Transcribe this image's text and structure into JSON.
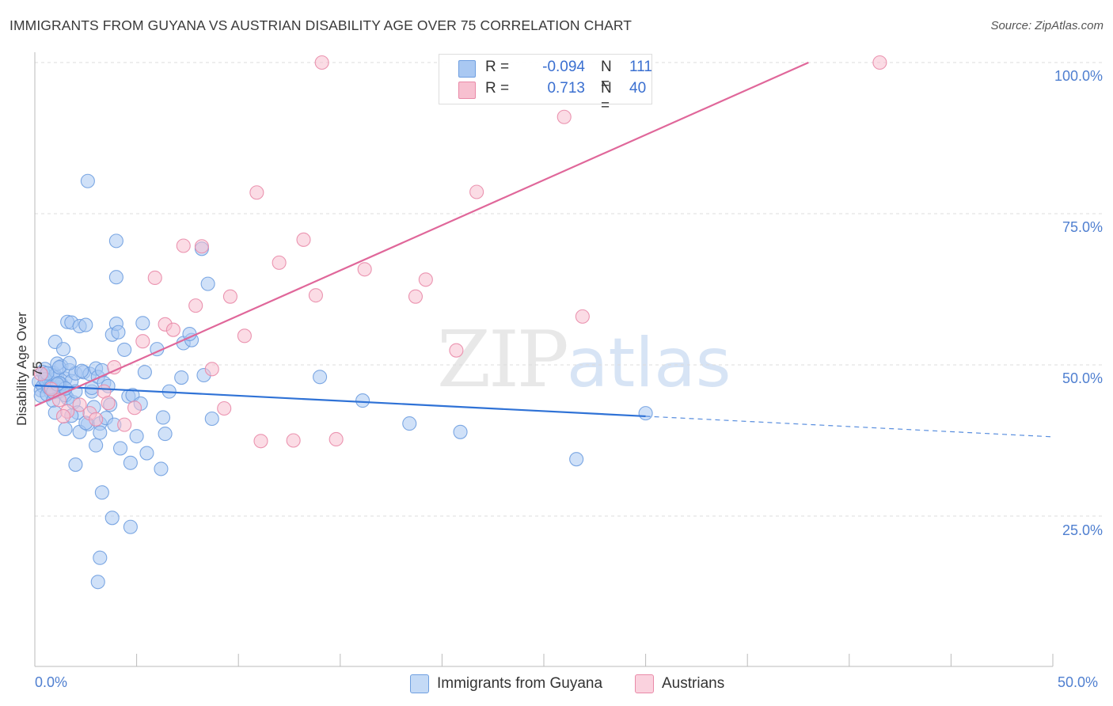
{
  "title": "IMMIGRANTS FROM GUYANA VS AUSTRIAN DISABILITY AGE OVER 75 CORRELATION CHART",
  "source": "Source: ZipAtlas.com",
  "watermark": {
    "part1": "ZIP",
    "part2": "atlas"
  },
  "legend": {
    "rows": [
      {
        "r_label": "R =",
        "r_value": "-0.094",
        "n_label": "N =",
        "n_value": "111",
        "color": "#a9c8f2",
        "stroke": "#6f9fe0"
      },
      {
        "r_label": "R =",
        "r_value": "0.713",
        "n_label": "N =",
        "n_value": "40",
        "color": "#f7c0d0",
        "stroke": "#e98aa8"
      }
    ]
  },
  "bottom_legend": [
    "Immigrants from Guyana",
    "Austrians"
  ],
  "chart_data": {
    "type": "scatter",
    "title": "IMMIGRANTS FROM GUYANA VS AUSTRIAN DISABILITY AGE OVER 75 CORRELATION CHART",
    "xlabel": "",
    "ylabel": "Disability Age Over 75",
    "xlim": [
      0,
      50
    ],
    "ylim": [
      0,
      102
    ],
    "x_tick_labels": [
      "0.0%",
      "50.0%"
    ],
    "y_ticks": [
      25,
      50,
      75,
      100
    ],
    "y_tick_labels": [
      "25.0%",
      "50.0%",
      "75.0%",
      "100.0%"
    ],
    "grid": "horizontal dashed",
    "legend_position": "top-center",
    "series": [
      {
        "name": "Immigrants from Guyana",
        "color": "#6f9fe0",
        "fill": "#a9c8f2",
        "trend": {
          "x0": 0,
          "y0": 46.6,
          "x1": 30,
          "y1": 41.5,
          "dashed_to_x": 50,
          "dashed_to_y": 38.1,
          "color": "#2f72d6"
        },
        "points": [
          [
            0.2,
            47.2
          ],
          [
            0.3,
            45.8
          ],
          [
            0.4,
            46.5
          ],
          [
            0.5,
            48.1
          ],
          [
            0.6,
            46.9
          ],
          [
            0.7,
            47.5
          ],
          [
            0.8,
            45.4
          ],
          [
            0.9,
            48.7
          ],
          [
            1.0,
            46.0
          ],
          [
            1.1,
            47.9
          ],
          [
            0.3,
            44.9
          ],
          [
            0.5,
            49.3
          ],
          [
            0.6,
            45.1
          ],
          [
            0.8,
            47.0
          ],
          [
            1.0,
            48.3
          ],
          [
            1.2,
            45.6
          ],
          [
            1.3,
            49.8
          ],
          [
            1.4,
            46.3
          ],
          [
            1.5,
            47.7
          ],
          [
            1.6,
            44.5
          ],
          [
            0.4,
            48.8
          ],
          [
            0.7,
            46.2
          ],
          [
            0.9,
            44.1
          ],
          [
            1.1,
            50.2
          ],
          [
            1.3,
            46.8
          ],
          [
            1.5,
            45.0
          ],
          [
            1.7,
            49.1
          ],
          [
            1.8,
            47.3
          ],
          [
            1.9,
            43.8
          ],
          [
            2.0,
            48.6
          ],
          [
            1.0,
            53.8
          ],
          [
            1.2,
            49.6
          ],
          [
            1.4,
            52.6
          ],
          [
            1.6,
            57.1
          ],
          [
            1.7,
            50.3
          ],
          [
            1.8,
            57.0
          ],
          [
            2.0,
            45.6
          ],
          [
            2.1,
            42.1
          ],
          [
            2.2,
            56.4
          ],
          [
            2.4,
            48.8
          ],
          [
            2.5,
            56.6
          ],
          [
            2.6,
            40.2
          ],
          [
            2.7,
            48.5
          ],
          [
            2.8,
            45.6
          ],
          [
            2.9,
            43.0
          ],
          [
            3.0,
            49.4
          ],
          [
            3.1,
            48.0
          ],
          [
            3.2,
            40.3
          ],
          [
            3.3,
            49.1
          ],
          [
            3.4,
            47.0
          ],
          [
            3.5,
            41.2
          ],
          [
            3.6,
            46.5
          ],
          [
            3.7,
            43.4
          ],
          [
            3.8,
            55.0
          ],
          [
            3.9,
            40.1
          ],
          [
            4.0,
            56.8
          ],
          [
            4.1,
            55.4
          ],
          [
            4.2,
            36.2
          ],
          [
            4.4,
            52.5
          ],
          [
            4.6,
            44.8
          ],
          [
            4.8,
            45.0
          ],
          [
            5.0,
            38.2
          ],
          [
            5.2,
            43.6
          ],
          [
            5.3,
            56.9
          ],
          [
            5.4,
            48.8
          ],
          [
            6.0,
            52.6
          ],
          [
            6.3,
            41.3
          ],
          [
            6.4,
            38.6
          ],
          [
            6.6,
            45.6
          ],
          [
            7.2,
            47.9
          ],
          [
            7.3,
            53.6
          ],
          [
            7.7,
            54.1
          ],
          [
            7.6,
            55.1
          ],
          [
            8.2,
            69.2
          ],
          [
            8.5,
            63.4
          ],
          [
            8.3,
            48.3
          ],
          [
            8.7,
            41.1
          ],
          [
            2.6,
            80.4
          ],
          [
            4.0,
            70.5
          ],
          [
            4.0,
            64.5
          ],
          [
            1.0,
            42.1
          ],
          [
            1.5,
            39.4
          ],
          [
            1.8,
            41.6
          ],
          [
            2.2,
            38.9
          ],
          [
            2.5,
            40.4
          ],
          [
            3.0,
            36.7
          ],
          [
            3.2,
            38.8
          ],
          [
            2.0,
            33.5
          ],
          [
            3.3,
            28.9
          ],
          [
            3.8,
            24.7
          ],
          [
            4.7,
            23.2
          ],
          [
            4.7,
            33.8
          ],
          [
            5.5,
            35.4
          ],
          [
            6.2,
            32.8
          ],
          [
            3.2,
            18.1
          ],
          [
            3.1,
            14.1
          ],
          [
            14.0,
            48.0
          ],
          [
            16.1,
            44.1
          ],
          [
            18.4,
            40.3
          ],
          [
            20.9,
            38.9
          ],
          [
            26.6,
            34.4
          ],
          [
            30.0,
            42.0
          ],
          [
            0.5,
            47.6
          ],
          [
            0.8,
            46.3
          ],
          [
            1.2,
            47.0
          ],
          [
            0.9,
            45.5
          ],
          [
            1.5,
            46.1
          ],
          [
            2.3,
            49.0
          ],
          [
            2.8,
            46.2
          ],
          [
            1.1,
            46.8
          ],
          [
            0.6,
            48.6
          ]
        ]
      },
      {
        "name": "Austrians",
        "color": "#e98aa8",
        "fill": "#f7c0d0",
        "trend": {
          "x0": 0,
          "y0": 43.2,
          "x1": 38.0,
          "y1": 100.0,
          "color": "#e0679a"
        },
        "points": [
          [
            0.3,
            48.5
          ],
          [
            0.8,
            46.0
          ],
          [
            1.2,
            44.2
          ],
          [
            1.6,
            42.3
          ],
          [
            1.4,
            41.5
          ],
          [
            2.2,
            43.4
          ],
          [
            2.7,
            42.0
          ],
          [
            3.0,
            41.0
          ],
          [
            3.4,
            45.6
          ],
          [
            3.6,
            43.7
          ],
          [
            3.9,
            49.6
          ],
          [
            4.4,
            40.1
          ],
          [
            4.9,
            42.9
          ],
          [
            5.3,
            53.9
          ],
          [
            5.9,
            64.4
          ],
          [
            6.4,
            56.7
          ],
          [
            6.8,
            55.8
          ],
          [
            7.3,
            69.7
          ],
          [
            7.9,
            59.8
          ],
          [
            8.2,
            69.6
          ],
          [
            8.7,
            49.3
          ],
          [
            9.3,
            42.8
          ],
          [
            9.6,
            61.3
          ],
          [
            10.3,
            54.8
          ],
          [
            10.9,
            78.5
          ],
          [
            11.1,
            37.4
          ],
          [
            12.0,
            66.9
          ],
          [
            12.7,
            37.5
          ],
          [
            13.2,
            70.7
          ],
          [
            13.8,
            61.5
          ],
          [
            14.1,
            100.0
          ],
          [
            14.8,
            37.7
          ],
          [
            16.2,
            65.8
          ],
          [
            18.7,
            61.3
          ],
          [
            19.2,
            64.1
          ],
          [
            20.7,
            52.4
          ],
          [
            21.7,
            78.6
          ],
          [
            26.0,
            91.0
          ],
          [
            26.9,
            58.0
          ],
          [
            41.5,
            100.0
          ]
        ]
      }
    ]
  }
}
